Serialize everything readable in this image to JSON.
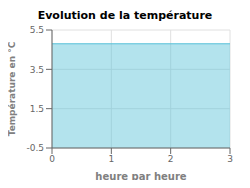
{
  "chart_data": {
    "type": "area",
    "title": "Evolution de la température",
    "xlabel": "heure par heure",
    "ylabel": "Température en °C",
    "x": [
      0,
      3
    ],
    "values": [
      4.8,
      4.8
    ],
    "color": "#56c0d8",
    "xlim": [
      0,
      3
    ],
    "ylim": [
      -0.5,
      5.5
    ],
    "xticks": [
      0,
      1,
      2,
      3
    ],
    "yticks": [
      -0.5,
      1.5,
      3.5,
      5.5
    ],
    "grid": true
  }
}
